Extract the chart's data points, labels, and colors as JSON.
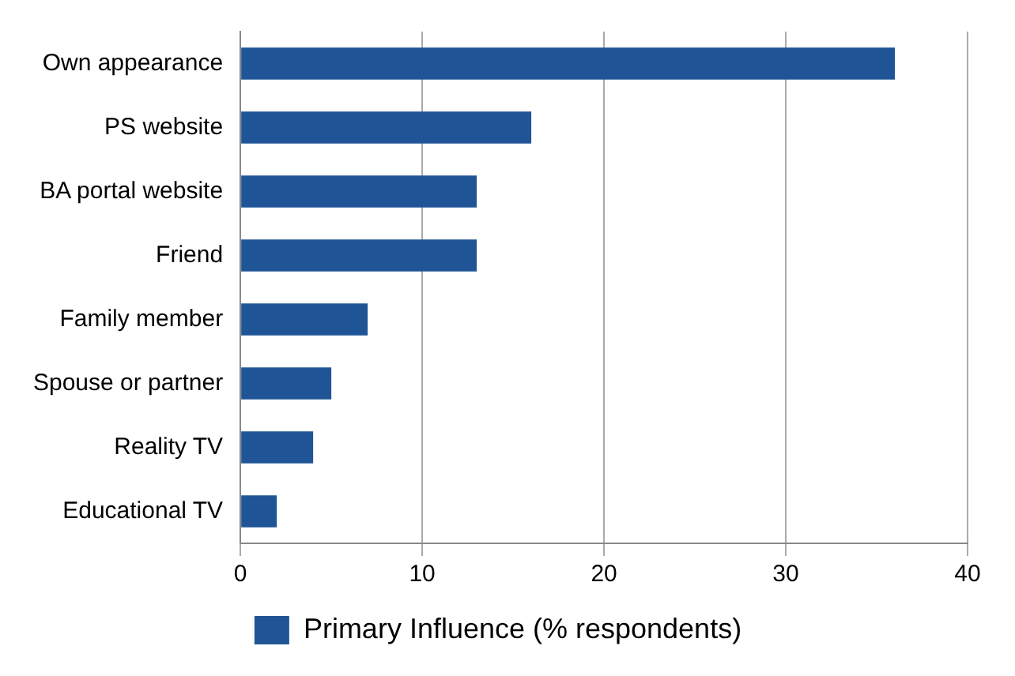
{
  "chart_data": {
    "type": "bar",
    "orientation": "horizontal",
    "categories": [
      "Own appearance",
      "PS website",
      "BA portal website",
      "Friend",
      "Family member",
      "Spouse or partner",
      "Reality TV",
      "Educational TV"
    ],
    "series": [
      {
        "name": "Primary Influence (% respondents)",
        "color": "#1f5597",
        "values": [
          36,
          16,
          13,
          13,
          7,
          5,
          4,
          2
        ]
      }
    ],
    "xlim": [
      0,
      40
    ],
    "xticks": [
      0,
      10,
      20,
      30,
      40
    ],
    "grid": "x",
    "legend": "bottom"
  }
}
